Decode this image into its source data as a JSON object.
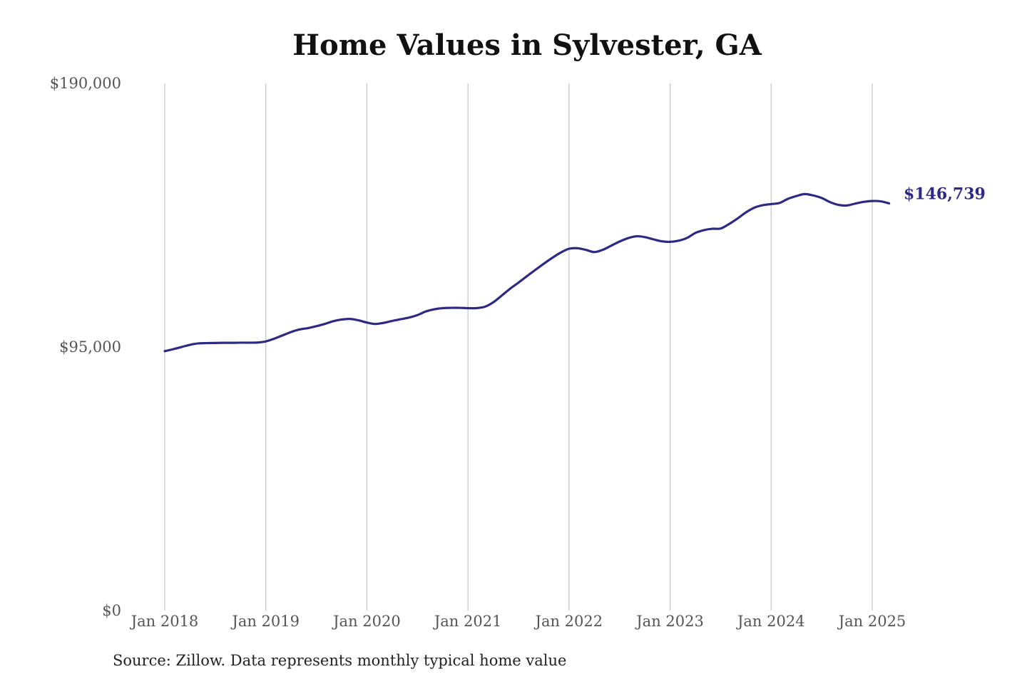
{
  "chart_data": {
    "type": "line",
    "title": "Home Values in Sylvester, GA",
    "xlabel": "",
    "ylabel": "",
    "ylim": [
      0,
      190000
    ],
    "y_ticks": [
      {
        "value": 0,
        "label": "$0"
      },
      {
        "value": 95000,
        "label": "$95,000"
      },
      {
        "value": 190000,
        "label": "$190,000"
      }
    ],
    "x_ticks": [
      {
        "value": 2018.0,
        "label": "Jan 2018"
      },
      {
        "value": 2019.0,
        "label": "Jan 2019"
      },
      {
        "value": 2020.0,
        "label": "Jan 2020"
      },
      {
        "value": 2021.0,
        "label": "Jan 2021"
      },
      {
        "value": 2022.0,
        "label": "Jan 2022"
      },
      {
        "value": 2023.0,
        "label": "Jan 2023"
      },
      {
        "value": 2024.0,
        "label": "Jan 2024"
      },
      {
        "value": 2025.0,
        "label": "Jan 2025"
      }
    ],
    "xlim": [
      2018.0,
      2025.0
    ],
    "grid": "vertical",
    "line_color": "#2e2a84",
    "end_label": "$146,739",
    "series": [
      {
        "points": [
          [
            2018.0,
            93500
          ],
          [
            2018.083,
            94200
          ],
          [
            2018.167,
            95000
          ],
          [
            2018.25,
            95800
          ],
          [
            2018.333,
            96300
          ],
          [
            2018.417,
            96400
          ],
          [
            2018.5,
            96450
          ],
          [
            2018.583,
            96500
          ],
          [
            2018.667,
            96500
          ],
          [
            2018.75,
            96550
          ],
          [
            2018.833,
            96550
          ],
          [
            2018.917,
            96600
          ],
          [
            2019.0,
            97000
          ],
          [
            2019.083,
            98000
          ],
          [
            2019.167,
            99200
          ],
          [
            2019.25,
            100400
          ],
          [
            2019.333,
            101300
          ],
          [
            2019.417,
            101800
          ],
          [
            2019.5,
            102500
          ],
          [
            2019.583,
            103300
          ],
          [
            2019.667,
            104300
          ],
          [
            2019.75,
            104900
          ],
          [
            2019.833,
            105100
          ],
          [
            2019.917,
            104600
          ],
          [
            2020.0,
            103800
          ],
          [
            2020.083,
            103300
          ],
          [
            2020.167,
            103700
          ],
          [
            2020.25,
            104400
          ],
          [
            2020.333,
            105000
          ],
          [
            2020.417,
            105600
          ],
          [
            2020.5,
            106500
          ],
          [
            2020.583,
            107800
          ],
          [
            2020.667,
            108600
          ],
          [
            2020.75,
            109000
          ],
          [
            2020.833,
            109100
          ],
          [
            2020.917,
            109100
          ],
          [
            2021.0,
            109000
          ],
          [
            2021.083,
            109000
          ],
          [
            2021.167,
            109500
          ],
          [
            2021.25,
            111100
          ],
          [
            2021.333,
            113500
          ],
          [
            2021.417,
            116000
          ],
          [
            2021.5,
            118200
          ],
          [
            2021.583,
            120500
          ],
          [
            2021.667,
            122800
          ],
          [
            2021.75,
            125000
          ],
          [
            2021.833,
            127100
          ],
          [
            2021.917,
            129000
          ],
          [
            2022.0,
            130400
          ],
          [
            2022.083,
            130600
          ],
          [
            2022.167,
            130000
          ],
          [
            2022.25,
            129200
          ],
          [
            2022.333,
            130000
          ],
          [
            2022.417,
            131500
          ],
          [
            2022.5,
            133000
          ],
          [
            2022.583,
            134200
          ],
          [
            2022.667,
            134900
          ],
          [
            2022.75,
            134600
          ],
          [
            2022.833,
            133800
          ],
          [
            2022.917,
            133100
          ],
          [
            2023.0,
            132900
          ],
          [
            2023.083,
            133300
          ],
          [
            2023.167,
            134300
          ],
          [
            2023.25,
            136100
          ],
          [
            2023.333,
            137100
          ],
          [
            2023.417,
            137600
          ],
          [
            2023.5,
            137700
          ],
          [
            2023.583,
            139300
          ],
          [
            2023.667,
            141300
          ],
          [
            2023.75,
            143500
          ],
          [
            2023.833,
            145200
          ],
          [
            2023.917,
            146100
          ],
          [
            2024.0,
            146500
          ],
          [
            2024.083,
            146900
          ],
          [
            2024.167,
            148400
          ],
          [
            2024.25,
            149400
          ],
          [
            2024.333,
            150100
          ],
          [
            2024.417,
            149600
          ],
          [
            2024.5,
            148700
          ],
          [
            2024.583,
            147200
          ],
          [
            2024.667,
            146200
          ],
          [
            2024.75,
            146000
          ],
          [
            2024.833,
            146700
          ],
          [
            2024.917,
            147300
          ],
          [
            2025.0,
            147600
          ],
          [
            2025.083,
            147500
          ],
          [
            2025.167,
            146739
          ]
        ]
      }
    ]
  },
  "footer": {
    "source": "Source: Zillow. Data represents monthly typical home value"
  }
}
